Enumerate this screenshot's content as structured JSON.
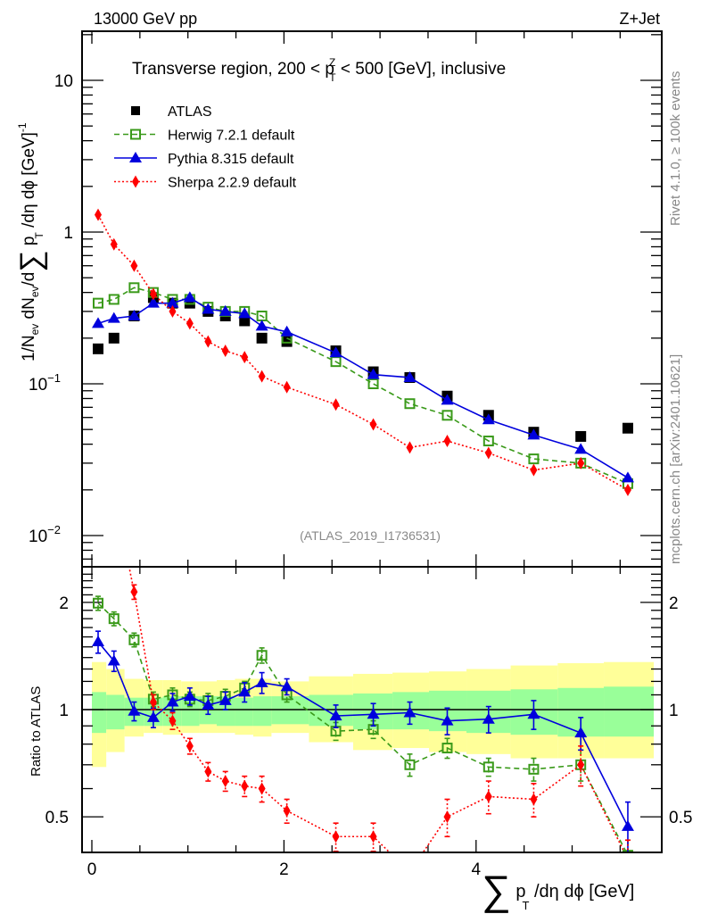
{
  "header": {
    "left_label": "13000 GeV pp",
    "right_label": "Z+Jet"
  },
  "side_labels": {
    "rivet": "Rivet 4.1.0, ≥ 100k events",
    "mcplots": "mcplots.cern.ch [arXiv:2401.10621]"
  },
  "chart_data": [
    {
      "type": "scatter",
      "panel": "main",
      "title": "Transverse region, 200 < p_T^Z < 500 [GeV], inclusive",
      "title_parts": {
        "pre": "Transverse region, 200 < p",
        "sup": "Z",
        "sub": "T",
        "post": " < 500 [GeV], inclusive"
      },
      "ylabel": "1/N_ev dN_ev/d∑ p_T /dη dϕ  [GeV]^-1",
      "ylabel_parts": {
        "a": "1/N",
        "a_sub": "ev",
        "b": " dN",
        "b_sub": "ev",
        "c": "/d",
        "sigma": "∑",
        "d": " p",
        "d_sub": "T",
        "e": " /dη dϕ  [GeV]",
        "e_sup": "-1"
      },
      "yscale": "log",
      "ylim": [
        0.0067,
        20
      ],
      "xlim": [
        -0.1,
        5.95
      ],
      "yticks": [
        {
          "v": 10,
          "label": "10"
        },
        {
          "v": 1,
          "label": "1"
        },
        {
          "v": 0.1,
          "label": "10",
          "sup": "−1"
        },
        {
          "v": 0.01,
          "label": "10",
          "sup": "−2"
        }
      ],
      "reference_label": "(ATLAS_2019_I1736531)",
      "legend_position": "top-left",
      "x": [
        0.065,
        0.23,
        0.44,
        0.64,
        0.84,
        1.02,
        1.21,
        1.39,
        1.59,
        1.77,
        2.03,
        2.54,
        2.93,
        3.31,
        3.7,
        4.13,
        4.6,
        5.09,
        5.58
      ],
      "series": [
        {
          "name": "ATLAS",
          "color": "#000000",
          "marker": "square-filled",
          "line": "none",
          "values": [
            0.17,
            0.2,
            0.28,
            0.37,
            0.34,
            0.34,
            0.3,
            0.28,
            0.26,
            0.2,
            0.19,
            0.165,
            0.12,
            0.11,
            0.083,
            0.062,
            0.048,
            0.045,
            0.051
          ]
        },
        {
          "name": "Herwig 7.2.1 default",
          "color": "#3a9a1a",
          "marker": "square-open",
          "line": "dashed",
          "values": [
            0.34,
            0.36,
            0.43,
            0.4,
            0.36,
            0.36,
            0.32,
            0.3,
            0.3,
            0.28,
            0.2,
            0.14,
            0.1,
            0.074,
            0.062,
            0.042,
            0.032,
            0.03,
            0.022
          ]
        },
        {
          "name": "Pythia 8.315 default",
          "color": "#0000dd",
          "marker": "triangle-filled",
          "line": "solid",
          "values": [
            0.25,
            0.27,
            0.28,
            0.34,
            0.34,
            0.37,
            0.31,
            0.3,
            0.29,
            0.24,
            0.22,
            0.16,
            0.115,
            0.11,
            0.078,
            0.058,
            0.046,
            0.037,
            0.024
          ]
        },
        {
          "name": "Sherpa 2.2.9 default",
          "color": "#ff0000",
          "marker": "diamond-filled",
          "line": "dotted",
          "values": [
            1.3,
            0.83,
            0.6,
            0.39,
            0.3,
            0.25,
            0.19,
            0.165,
            0.15,
            0.112,
            0.095,
            0.073,
            0.054,
            0.038,
            0.042,
            0.035,
            0.027,
            0.03,
            0.02
          ]
        }
      ]
    },
    {
      "type": "scatter",
      "panel": "ratio",
      "ylabel": "Ratio to ATLAS",
      "xlabel": "∑ p_T /dη dϕ [GeV]",
      "xlabel_parts": {
        "sigma": "∑",
        "a": " p",
        "a_sub": "T",
        "b": " /dη dϕ [GeV]"
      },
      "yscale": "log",
      "ylim": [
        0.42,
        2.5
      ],
      "xticks": [
        {
          "v": 0,
          "label": "0"
        },
        {
          "v": 2,
          "label": "2"
        },
        {
          "v": 4,
          "label": "4"
        }
      ],
      "yticks": [
        {
          "v": 2,
          "label": "2"
        },
        {
          "v": 1,
          "label": "1"
        },
        {
          "v": 0.5,
          "label": "0.5"
        }
      ],
      "bands": {
        "edges": [
          0.0,
          0.15,
          0.34,
          0.54,
          0.74,
          0.93,
          1.12,
          1.3,
          1.49,
          1.68,
          1.87,
          2.26,
          2.72,
          3.13,
          3.51,
          3.9,
          4.36,
          4.85,
          5.33,
          5.85
        ],
        "stat_color": "#99ff99",
        "total_color": "#ffff99",
        "inner_up": [
          1.12,
          1.1,
          1.08,
          1.08,
          1.09,
          1.09,
          1.09,
          1.09,
          1.08,
          1.09,
          1.09,
          1.1,
          1.11,
          1.12,
          1.13,
          1.13,
          1.14,
          1.15,
          1.16
        ],
        "inner_down": [
          0.86,
          0.88,
          0.9,
          0.9,
          0.9,
          0.9,
          0.91,
          0.9,
          0.9,
          0.9,
          0.91,
          0.9,
          0.88,
          0.88,
          0.87,
          0.86,
          0.85,
          0.84,
          0.84
        ],
        "outer_up": [
          1.36,
          1.3,
          1.22,
          1.21,
          1.21,
          1.2,
          1.2,
          1.21,
          1.22,
          1.22,
          1.2,
          1.24,
          1.26,
          1.27,
          1.28,
          1.3,
          1.33,
          1.35,
          1.36
        ],
        "outer_down": [
          0.69,
          0.76,
          0.84,
          0.86,
          0.85,
          0.86,
          0.86,
          0.86,
          0.85,
          0.84,
          0.86,
          0.81,
          0.77,
          0.78,
          0.76,
          0.75,
          0.73,
          0.73,
          0.73
        ]
      },
      "series": [
        {
          "name": "Herwig 7.2.1 default",
          "color": "#3a9a1a",
          "marker": "square-open",
          "line": "dashed",
          "values": [
            1.99,
            1.8,
            1.57,
            1.07,
            1.1,
            1.07,
            1.06,
            1.09,
            1.15,
            1.42,
            1.1,
            0.87,
            0.88,
            0.7,
            0.78,
            0.69,
            0.68,
            0.7,
            0.39
          ],
          "err": [
            0.09,
            0.08,
            0.07,
            0.05,
            0.05,
            0.05,
            0.05,
            0.05,
            0.05,
            0.07,
            0.05,
            0.05,
            0.05,
            0.05,
            0.05,
            0.04,
            0.05,
            0.07,
            0.04
          ]
        },
        {
          "name": "Pythia 8.315 default",
          "color": "#0000dd",
          "marker": "triangle-filled",
          "line": "solid",
          "values": [
            1.55,
            1.37,
            0.99,
            0.95,
            1.05,
            1.09,
            1.03,
            1.06,
            1.12,
            1.19,
            1.16,
            0.96,
            0.97,
            0.98,
            0.93,
            0.94,
            0.97,
            0.86,
            0.47
          ],
          "err": [
            0.11,
            0.09,
            0.06,
            0.06,
            0.06,
            0.06,
            0.06,
            0.06,
            0.07,
            0.08,
            0.06,
            0.07,
            0.07,
            0.07,
            0.08,
            0.08,
            0.09,
            0.09,
            0.08
          ]
        },
        {
          "name": "Sherpa 2.2.9 default",
          "color": "#ff0000",
          "marker": "diamond-filled",
          "line": "dotted",
          "values": [
            7.6,
            4.1,
            2.14,
            1.05,
            0.93,
            0.79,
            0.67,
            0.63,
            0.61,
            0.6,
            0.52,
            0.44,
            0.44,
            0.35,
            0.5,
            0.57,
            0.56,
            0.7,
            0.38
          ],
          "err": [
            0.3,
            0.2,
            0.1,
            0.05,
            0.05,
            0.04,
            0.04,
            0.04,
            0.04,
            0.05,
            0.04,
            0.04,
            0.04,
            0.04,
            0.06,
            0.06,
            0.06,
            0.09,
            0.05
          ]
        }
      ]
    }
  ]
}
